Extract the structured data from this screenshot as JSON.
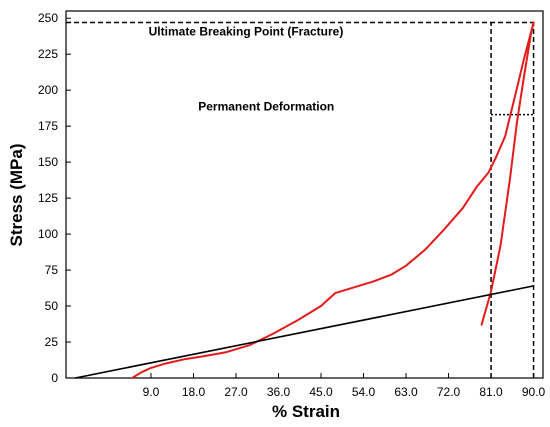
{
  "chart_data": {
    "type": "line",
    "title": "",
    "xlabel": "% Strain",
    "ylabel": "Stress (MPa)",
    "xlim": [
      -9,
      92
    ],
    "ylim": [
      0,
      255
    ],
    "xticks": [
      "9.0",
      "18.0",
      "27.0",
      "36.0",
      "45.0",
      "54.0",
      "63.0",
      "72.0",
      "81.0",
      "90.0"
    ],
    "yticks": [
      "0",
      "25",
      "50",
      "75",
      "100",
      "125",
      "150",
      "175",
      "200",
      "225",
      "250"
    ],
    "grid": false,
    "legend": "none",
    "colors": {
      "curve": "#e31b1b",
      "line": "#000000"
    },
    "series": [
      {
        "style": "curve",
        "x": [
          5,
          7,
          9,
          12,
          16,
          20,
          25,
          30,
          35,
          40,
          45,
          48,
          52,
          56,
          60,
          63,
          67,
          71,
          75,
          78,
          80.5,
          82,
          84,
          86,
          88,
          90
        ],
        "y": [
          0,
          4,
          7,
          10,
          13,
          15,
          18,
          23,
          31,
          40,
          50,
          59,
          63,
          67,
          72,
          78,
          89,
          103,
          118,
          133,
          143,
          153,
          168,
          195,
          222,
          247
        ]
      },
      {
        "style": "curve",
        "x": [
          79,
          81,
          83,
          85,
          86.5,
          88,
          89.5,
          90
        ],
        "y": [
          37,
          60,
          92,
          138,
          178,
          210,
          240,
          247
        ]
      },
      {
        "style": "line",
        "x": [
          -7,
          90
        ],
        "y": [
          0,
          64
        ]
      }
    ],
    "reference_lines": [
      {
        "axis": "h",
        "y": 247,
        "x_from": -9,
        "x_to": 90,
        "dash": "dashed"
      },
      {
        "axis": "v",
        "x": 81,
        "y_from": 0,
        "y_to": 247,
        "dash": "dashed"
      },
      {
        "axis": "v",
        "x": 90,
        "y_from": 0,
        "y_to": 247,
        "dash": "dashed"
      },
      {
        "axis": "h",
        "y": 183,
        "x_from": 81,
        "x_to": 90,
        "dash": "dotted"
      }
    ],
    "annotations": [
      {
        "text": "Ultimate Breaking Point (Fracture)",
        "x": 8.5,
        "y": 238
      },
      {
        "text": "Permanent Deformation",
        "x": 19,
        "y": 186
      }
    ]
  }
}
